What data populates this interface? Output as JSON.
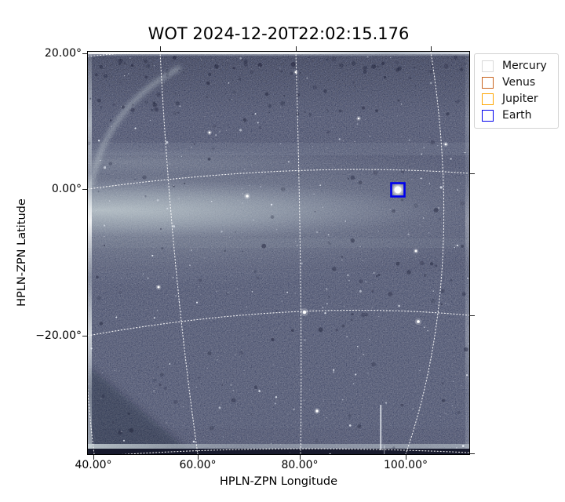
{
  "plot": {
    "title": "WOT 2024-12-20T22:02:15.176",
    "x_axis": {
      "label": "HPLN-ZPN Longitude",
      "tick_labels": [
        "40.00°",
        "60.00°",
        "80.00°",
        "100.00°"
      ]
    },
    "y_axis": {
      "label": "HPLN-ZPN Latitude",
      "tick_labels": [
        "20.00°",
        "0.00°",
        "−20.00°"
      ]
    }
  },
  "legend": {
    "entries": [
      {
        "label": "Mercury",
        "edge_color": "#d9d9d9",
        "fill_color": "#ffffff"
      },
      {
        "label": "Venus",
        "edge_color": "#c9641f",
        "fill_color": "#ffffff"
      },
      {
        "label": "Jupiter",
        "edge_color": "#ffa500",
        "fill_color": "#ffffff"
      },
      {
        "label": "Earth",
        "edge_color": "#0000ee",
        "fill_color": "#ffffff"
      }
    ]
  },
  "chart_data": {
    "type": "image",
    "title": "WOT 2024-12-20T22:02:15.176",
    "xlabel": "HPLN-ZPN Longitude",
    "ylabel": "HPLN-ZPN Latitude",
    "x_ticks_deg": [
      40,
      60,
      80,
      100
    ],
    "y_ticks_deg": [
      20,
      0,
      -20
    ],
    "xlim_deg": [
      39,
      111
    ],
    "ylim_deg": [
      -37,
      20.5
    ],
    "grid": {
      "visible": true,
      "style": "white dotted curved graticule (ZPN projection)"
    },
    "image": {
      "description": "dark blue-gray wide-field starfield with noise speckle, a bright zodiacal-light band near 0° latitude brightest at the left edge and fading to the right, bright detector edge lines at top/bottom/left, a faint bright arc in the upper-left corner and a short bright vertical streak near the lower middle",
      "base_color": "#474b63",
      "band_color": "#d6e2e2",
      "star_color": "#e9eef6",
      "grid_color": "#ffffff"
    },
    "markers": [
      {
        "label": "Earth",
        "approx_lon_deg": 96,
        "approx_lat_deg": -1,
        "marker": "open square",
        "color": "#0000ee",
        "note": "bright white dot enclosed by the square"
      }
    ]
  }
}
